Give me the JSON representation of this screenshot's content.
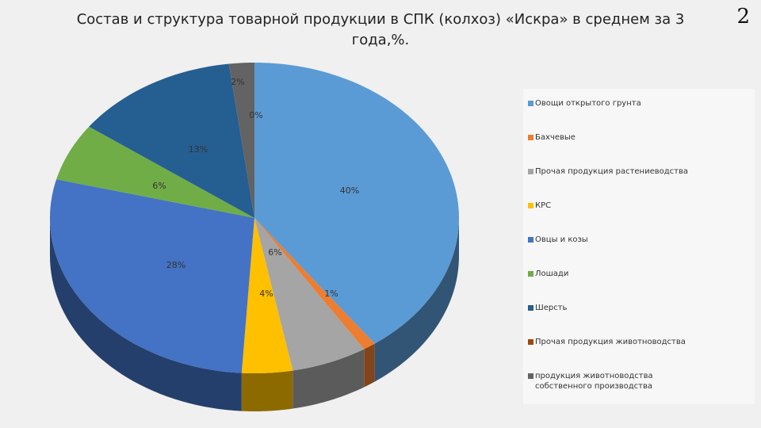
{
  "page": {
    "title": "Состав и структура товарной продукции в СПК (колхоз) «Искра» в среднем за 3 года,%.",
    "page_number": "2"
  },
  "chart_data": {
    "type": "pie",
    "style": "3d",
    "title": "Состав и структура товарной продукции в СПК (колхоз) «Искра» в среднем за 3 года,%.",
    "legend_position": "right",
    "categories": [
      "Овощи открытого грунта",
      "Бахчевые",
      "Прочая продукция растениеводства",
      "КРС",
      "Овцы и козы",
      "Лошади",
      "Шерсть",
      "Прочая продукция животноводства",
      "продукция животноводства собственного производства"
    ],
    "values": [
      40,
      1,
      6,
      4,
      28,
      6,
      13,
      0,
      2
    ],
    "labels": [
      "40%",
      "1%",
      "6%",
      "4%",
      "28%",
      "6%",
      "13%",
      "0%",
      "2%"
    ],
    "colors": [
      "#5b9bd5",
      "#ed7d31",
      "#a5a5a5",
      "#ffc000",
      "#4472c4",
      "#70ad47",
      "#255e91",
      "#9e480e",
      "#636363"
    ]
  }
}
